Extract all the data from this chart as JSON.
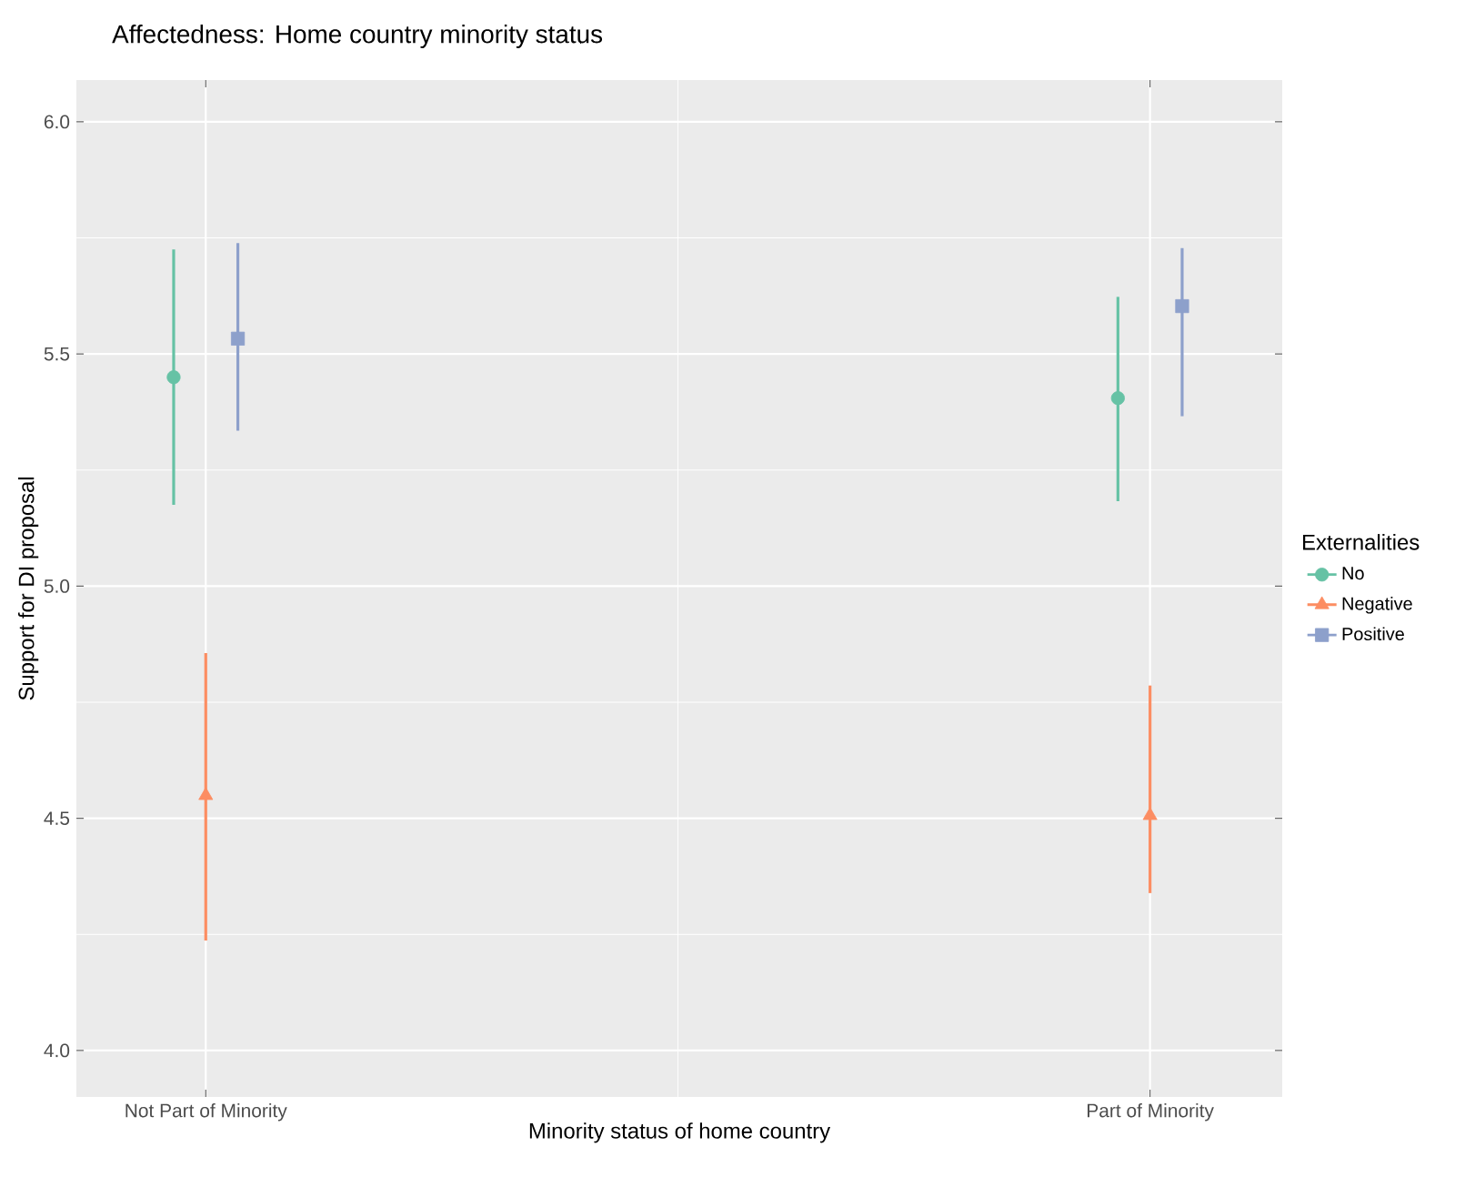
{
  "chart_data": {
    "type": "scatter",
    "title": "Affectedness: Home country minority status",
    "xlabel": "Minority status of home country",
    "ylabel": "Support for DI proposal",
    "legend_title": "Externalities",
    "categories": [
      "Not Part of Minority",
      "Part of Minority"
    ],
    "series": [
      {
        "name": "No",
        "color": "#66c2a5",
        "marker": "circle",
        "values": [
          5.45,
          5.405
        ],
        "errors": [
          [
            5.175,
            5.725
          ],
          [
            5.183,
            5.623
          ]
        ]
      },
      {
        "name": "Negative",
        "color": "#fc8d62",
        "marker": "triangle",
        "values": [
          4.549,
          4.506
        ],
        "errors": [
          [
            4.237,
            4.856
          ],
          [
            4.339,
            4.786
          ]
        ]
      },
      {
        "name": "Positive",
        "color": "#8da0cb",
        "marker": "square",
        "values": [
          5.533,
          5.603
        ],
        "errors": [
          [
            5.335,
            5.739
          ],
          [
            5.366,
            5.728
          ]
        ]
      }
    ],
    "ylim": [
      3.9,
      6.09
    ],
    "yticks": [
      {
        "value": 4,
        "label": "4.0"
      },
      4.5,
      {
        "value": 5,
        "label": "5.0"
      },
      5.5,
      {
        "value": 6,
        "label": "6.0"
      }
    ],
    "grid": true,
    "legend": "right"
  }
}
